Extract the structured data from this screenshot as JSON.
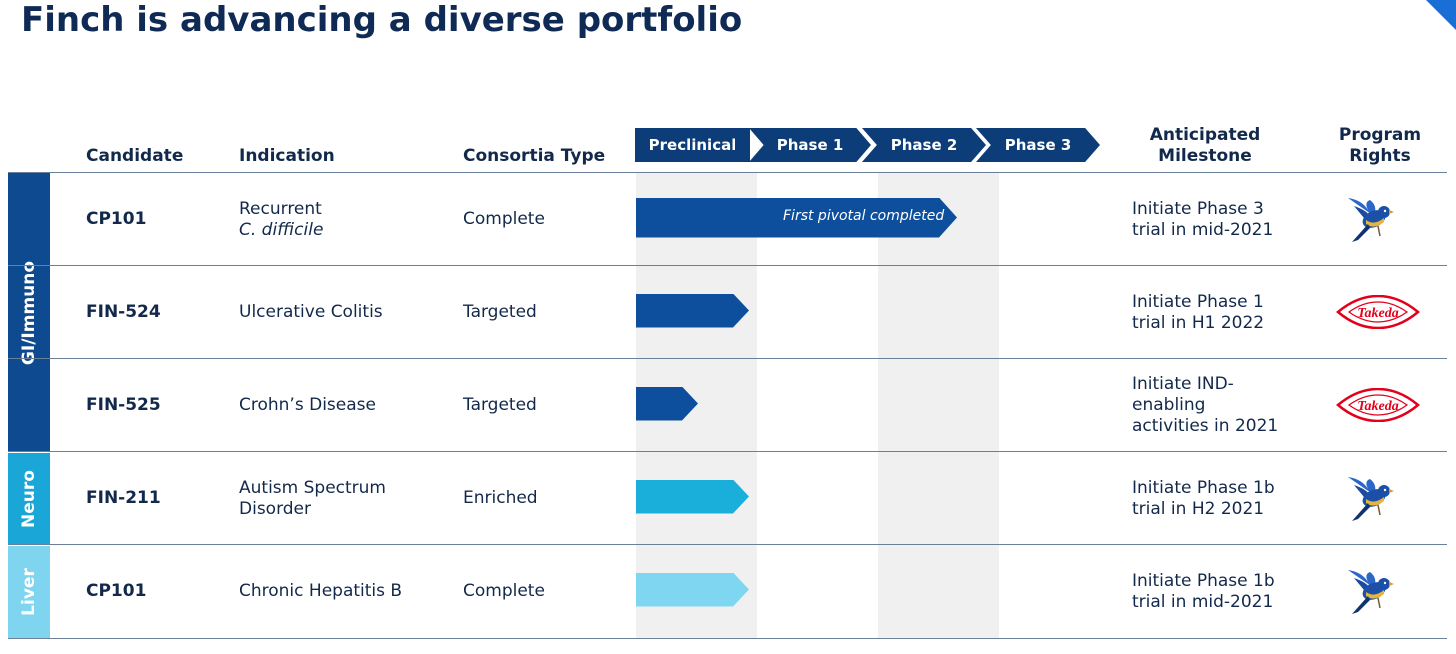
{
  "title": "Finch is advancing a diverse portfolio",
  "headers": {
    "candidate": "Candidate",
    "indication": "Indication",
    "consortia": "Consortia Type",
    "milestone_line1": "Anticipated",
    "milestone_line2": "Milestone",
    "rights_line1": "Program",
    "rights_line2": "Rights"
  },
  "phases": [
    "Preclinical",
    "Phase 1",
    "Phase 2",
    "Phase 3"
  ],
  "groups": [
    {
      "label": "GI/Immuno",
      "color": "#0d4a8f"
    },
    {
      "label": "Neuro",
      "color": "#1aa7d8"
    },
    {
      "label": "Liver",
      "color": "#7fd4ef"
    }
  ],
  "rows": [
    {
      "candidate": "CP101",
      "indication_line1": "Recurrent",
      "indication_line2": "C. difficile",
      "consortia": "Complete",
      "progress_phase": 2.5,
      "bar_label": "First pivotal completed",
      "bar_color": "#0d4f9c",
      "milestone": [
        "Initiate Phase 3",
        "trial in mid-2021"
      ],
      "rights": "finch-bird"
    },
    {
      "candidate": "FIN-524",
      "indication_line1": "Ulcerative Colitis",
      "indication_line2": "",
      "consortia": "Targeted",
      "progress_phase": 0.8,
      "bar_label": "",
      "bar_color": "#0d4f9c",
      "milestone": [
        "Initiate Phase 1",
        "trial in H1 2022"
      ],
      "rights": "Takeda"
    },
    {
      "candidate": "FIN-525",
      "indication_line1": "Crohn’s Disease",
      "indication_line2": "",
      "consortia": "Targeted",
      "progress_phase": 0.38,
      "bar_label": "",
      "bar_color": "#0d4f9c",
      "milestone": [
        "Initiate IND-",
        "enabling",
        "activities in 2021"
      ],
      "rights": "Takeda"
    },
    {
      "candidate": "FIN-211",
      "indication_line1": "Autism Spectrum",
      "indication_line2": "Disorder",
      "consortia": "Enriched",
      "progress_phase": 0.8,
      "bar_label": "",
      "bar_color": "#1aafda",
      "milestone": [
        "Initiate Phase 1b",
        "trial in H2 2021"
      ],
      "rights": "finch-bird"
    },
    {
      "candidate": "CP101",
      "indication_line1": "Chronic Hepatitis B",
      "indication_line2": "",
      "consortia": "Complete",
      "progress_phase": 0.8,
      "bar_label": "",
      "bar_color": "#7fd6f0",
      "milestone": [
        "Initiate Phase 1b",
        "trial in mid-2021"
      ],
      "rights": "finch-bird"
    }
  ]
}
